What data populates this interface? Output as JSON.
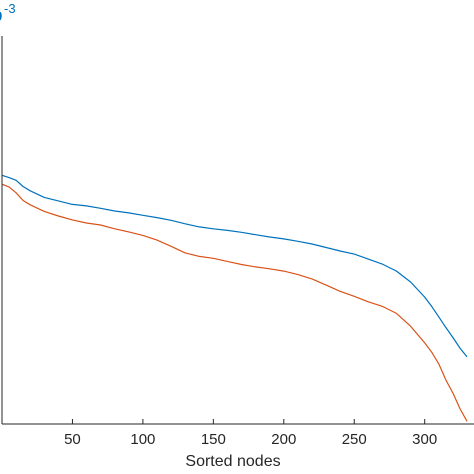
{
  "chart_data": {
    "type": "line",
    "xlabel": "Sorted nodes",
    "ylabel": "",
    "y_exponent_label": "-3",
    "y_exponent_base": "0",
    "xlim": [
      0,
      335
    ],
    "ylim": [
      0,
      1
    ],
    "xticks": [
      50,
      100,
      150,
      200,
      250,
      300
    ],
    "grid": false,
    "colors": {
      "series1": "#0072BD",
      "series2": "#D95319",
      "axis": "#262626"
    },
    "series": [
      {
        "color": "#0072BD",
        "x": [
          0,
          5,
          10,
          15,
          20,
          30,
          40,
          50,
          60,
          70,
          80,
          90,
          100,
          110,
          120,
          130,
          140,
          150,
          160,
          170,
          180,
          190,
          200,
          210,
          220,
          230,
          240,
          250,
          260,
          270,
          280,
          290,
          300,
          305,
          310,
          315,
          320,
          325,
          330
        ],
        "y": [
          0.641,
          0.635,
          0.628,
          0.612,
          0.601,
          0.584,
          0.575,
          0.566,
          0.562,
          0.556,
          0.549,
          0.544,
          0.538,
          0.532,
          0.525,
          0.516,
          0.508,
          0.503,
          0.499,
          0.494,
          0.488,
          0.482,
          0.477,
          0.471,
          0.464,
          0.455,
          0.446,
          0.438,
          0.425,
          0.412,
          0.394,
          0.366,
          0.327,
          0.303,
          0.276,
          0.249,
          0.223,
          0.196,
          0.173
        ]
      },
      {
        "color": "#D95319",
        "x": [
          0,
          5,
          10,
          15,
          20,
          30,
          40,
          50,
          60,
          70,
          80,
          90,
          100,
          110,
          120,
          130,
          140,
          150,
          160,
          170,
          180,
          190,
          200,
          210,
          220,
          230,
          240,
          250,
          260,
          270,
          280,
          290,
          300,
          305,
          310,
          315,
          320,
          325,
          330
        ],
        "y": [
          0.618,
          0.611,
          0.596,
          0.576,
          0.565,
          0.548,
          0.536,
          0.526,
          0.518,
          0.513,
          0.503,
          0.495,
          0.486,
          0.474,
          0.458,
          0.441,
          0.432,
          0.427,
          0.419,
          0.411,
          0.405,
          0.4,
          0.394,
          0.385,
          0.374,
          0.358,
          0.342,
          0.329,
          0.315,
          0.303,
          0.285,
          0.252,
          0.209,
          0.185,
          0.155,
          0.114,
          0.08,
          0.04,
          0.007
        ]
      }
    ]
  }
}
